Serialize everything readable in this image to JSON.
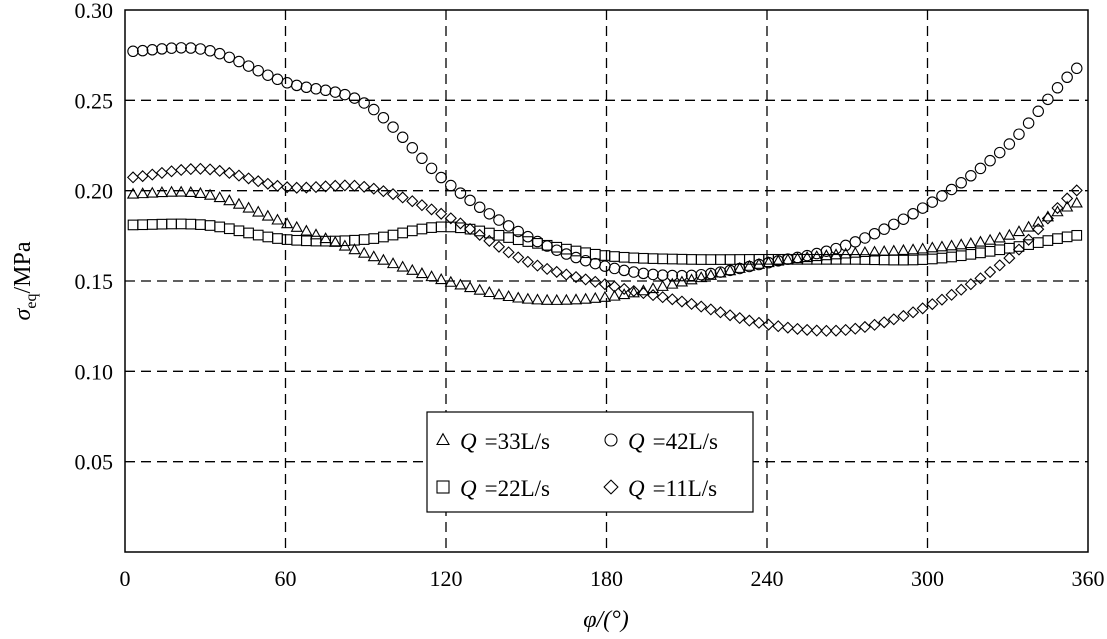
{
  "chart_data": {
    "type": "scatter",
    "xlabel": "φ/(°)",
    "ylabel_symbol": "σ",
    "ylabel_subscript": "eq",
    "ylabel_unit": "/MPa",
    "xlim": [
      0,
      360
    ],
    "ylim": [
      0.0,
      0.3
    ],
    "xticks": [
      0,
      60,
      120,
      180,
      240,
      300,
      360
    ],
    "yticks": [
      0.05,
      0.1,
      0.15,
      0.2,
      0.25,
      0.3
    ],
    "ytick_labels": [
      "0.05",
      "0.10",
      "0.15",
      "0.20",
      "0.25",
      "0.30"
    ],
    "xtick_labels": [
      "0",
      "60",
      "120",
      "180",
      "240",
      "300",
      "360"
    ],
    "grid": true,
    "legend_position": "bottom-center",
    "x": [
      0,
      30,
      60,
      90,
      120,
      150,
      180,
      210,
      240,
      270,
      300,
      330,
      360
    ],
    "series": [
      {
        "legend_symbol": "Q",
        "legend_value": "=33L/s",
        "marker": "triangle",
        "values": [
          0.198,
          0.198,
          0.182,
          0.165,
          0.15,
          0.14,
          0.141,
          0.15,
          0.16,
          0.165,
          0.168,
          0.175,
          0.195
        ]
      },
      {
        "legend_symbol": "Q",
        "legend_value": "=42L/s",
        "marker": "circle",
        "values": [
          0.277,
          0.278,
          0.26,
          0.248,
          0.205,
          0.175,
          0.158,
          0.153,
          0.16,
          0.17,
          0.192,
          0.225,
          0.272
        ]
      },
      {
        "legend_symbol": "Q",
        "legend_value": "=22L/s",
        "marker": "square",
        "values": [
          0.181,
          0.181,
          0.173,
          0.173,
          0.18,
          0.172,
          0.164,
          0.162,
          0.162,
          0.162,
          0.162,
          0.168,
          0.176
        ]
      },
      {
        "legend_symbol": "Q",
        "legend_value": "=11L/s",
        "marker": "diamond",
        "values": [
          0.207,
          0.212,
          0.202,
          0.202,
          0.186,
          0.161,
          0.148,
          0.138,
          0.126,
          0.123,
          0.136,
          0.162,
          0.204
        ]
      }
    ]
  }
}
